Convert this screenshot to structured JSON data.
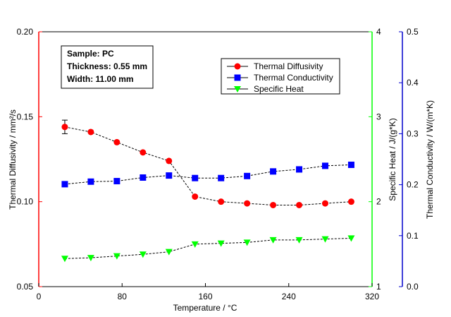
{
  "chart_data": {
    "type": "line",
    "x": [
      25,
      50,
      75,
      100,
      125,
      150,
      175,
      200,
      225,
      250,
      275,
      300
    ],
    "xlabel": "Temperature / °C",
    "xlim": [
      0,
      320
    ],
    "xticks": [
      "0",
      "80",
      "160",
      "240",
      "320"
    ],
    "xtick_values": [
      0,
      80,
      160,
      240,
      320
    ],
    "axes": {
      "left": {
        "label": "Thermal Diffusivity / mm²/s",
        "range": [
          0.05,
          0.2
        ],
        "ticks": [
          "0.05",
          "0.10",
          "0.15",
          "0.20"
        ],
        "tick_values": [
          0.05,
          0.1,
          0.15,
          0.2
        ],
        "color": "#ff0000"
      },
      "right_inner": {
        "label": "Specific Heat / J/(g*K)",
        "range": [
          1,
          4
        ],
        "ticks": [
          "1",
          "2",
          "3",
          "4"
        ],
        "tick_values": [
          1,
          2,
          3,
          4
        ],
        "color": "#00ff00"
      },
      "right_outer": {
        "label": "Thermal Conductivity / W/(m*K)",
        "range": [
          0,
          0.5
        ],
        "ticks": [
          "0.0",
          "0.1",
          "0.2",
          "0.3",
          "0.4",
          "0.5"
        ],
        "tick_values": [
          0,
          0.1,
          0.2,
          0.3,
          0.4,
          0.5
        ],
        "color": "#0000cc"
      }
    },
    "series": [
      {
        "name": "Thermal Diffusivity",
        "axis": "left",
        "marker": "circle",
        "color": "#ff0000",
        "values": [
          0.144,
          0.141,
          0.135,
          0.129,
          0.124,
          0.103,
          0.1,
          0.099,
          0.098,
          0.098,
          0.099,
          0.1
        ],
        "error_bar_at_index": 0,
        "error": 0.004
      },
      {
        "name": "Thermal Conductivity",
        "axis": "right_outer",
        "marker": "square",
        "color": "#0000ff",
        "values": [
          0.201,
          0.206,
          0.207,
          0.214,
          0.218,
          0.213,
          0.213,
          0.217,
          0.226,
          0.23,
          0.237,
          0.239
        ]
      },
      {
        "name": "Specific Heat",
        "axis": "right_inner",
        "marker": "triangle-down",
        "color": "#00ff00",
        "values": [
          1.33,
          1.34,
          1.36,
          1.38,
          1.41,
          1.5,
          1.51,
          1.52,
          1.55,
          1.55,
          1.56,
          1.57
        ]
      }
    ],
    "legend_position": "top-right",
    "grid": false,
    "annotation": {
      "lines": [
        "Sample: PC",
        "Thickness: 0.55 mm",
        "Width: 11.00 mm"
      ]
    }
  }
}
